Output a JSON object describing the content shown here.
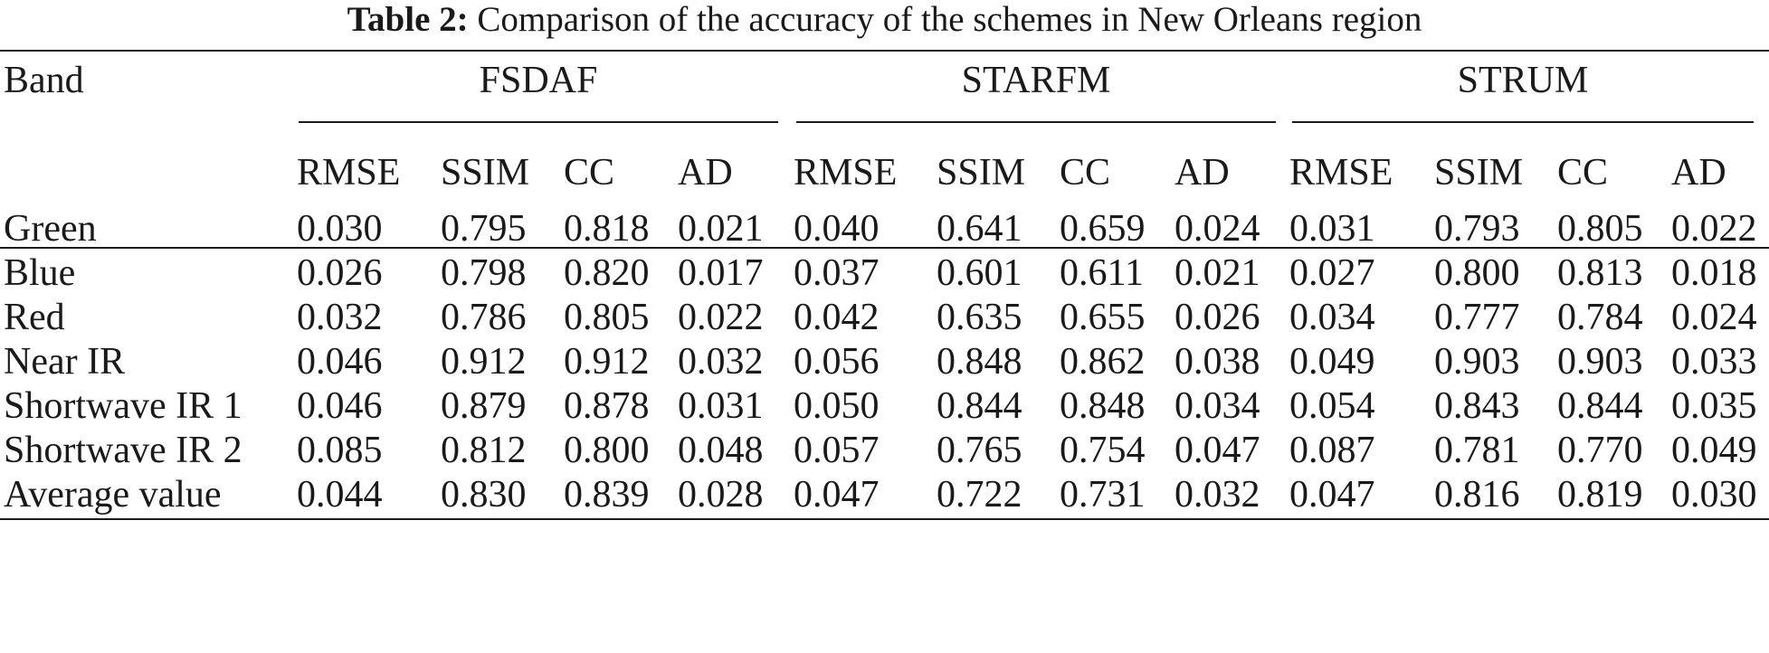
{
  "caption": {
    "label": "Table 2:",
    "text": "Comparison of the accuracy of the schemes in New Orleans region"
  },
  "table": {
    "band_header": "Band",
    "groups": [
      "FSDAF",
      "STARFM",
      "STRUM"
    ],
    "metrics": [
      "RMSE",
      "SSIM",
      "CC",
      "AD"
    ],
    "rows": [
      {
        "band": "Green",
        "values": [
          "0.030",
          "0.795",
          "0.818",
          "0.021",
          "0.040",
          "0.641",
          "0.659",
          "0.024",
          "0.031",
          "0.793",
          "0.805",
          "0.022"
        ]
      },
      {
        "band": "Blue",
        "values": [
          "0.026",
          "0.798",
          "0.820",
          "0.017",
          "0.037",
          "0.601",
          "0.611",
          "0.021",
          "0.027",
          "0.800",
          "0.813",
          "0.018"
        ]
      },
      {
        "band": "Red",
        "values": [
          "0.032",
          "0.786",
          "0.805",
          "0.022",
          "0.042",
          "0.635",
          "0.655",
          "0.026",
          "0.034",
          "0.777",
          "0.784",
          "0.024"
        ]
      },
      {
        "band": "Near IR",
        "values": [
          "0.046",
          "0.912",
          "0.912",
          "0.032",
          "0.056",
          "0.848",
          "0.862",
          "0.038",
          "0.049",
          "0.903",
          "0.903",
          "0.033"
        ]
      },
      {
        "band": "Shortwave IR 1",
        "values": [
          "0.046",
          "0.879",
          "0.878",
          "0.031",
          "0.050",
          "0.844",
          "0.848",
          "0.034",
          "0.054",
          "0.843",
          "0.844",
          "0.035"
        ]
      },
      {
        "band": "Shortwave IR 2",
        "values": [
          "0.085",
          "0.812",
          "0.800",
          "0.048",
          "0.057",
          "0.765",
          "0.754",
          "0.047",
          "0.087",
          "0.781",
          "0.770",
          "0.049"
        ]
      },
      {
        "band": "Average value",
        "values": [
          "0.044",
          "0.830",
          "0.839",
          "0.028",
          "0.047",
          "0.722",
          "0.731",
          "0.032",
          "0.047",
          "0.816",
          "0.819",
          "0.030"
        ]
      }
    ]
  }
}
